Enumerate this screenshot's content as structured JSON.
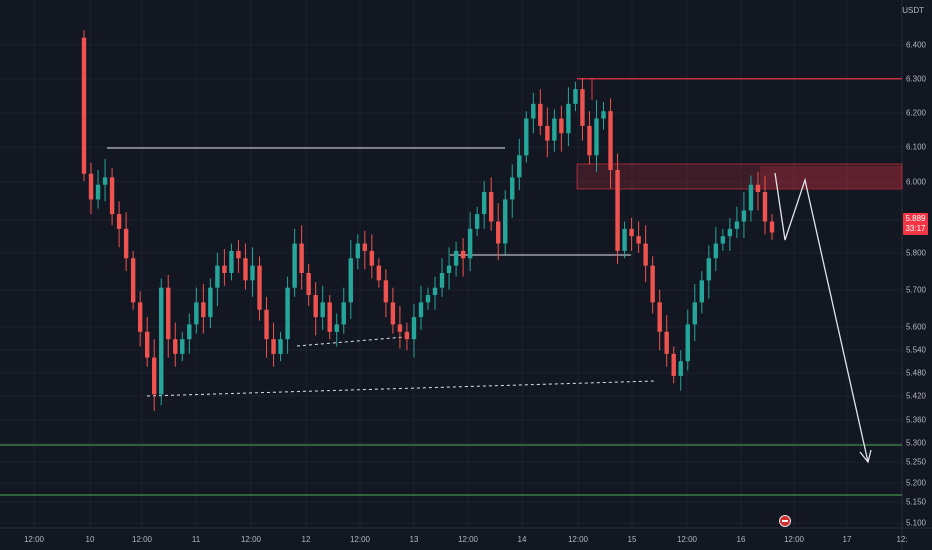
{
  "currency": "USDT",
  "last_price": {
    "price": "5.889",
    "countdown": "33:17"
  },
  "price_axis": [
    "6.400",
    "6.300",
    "6.200",
    "6.100",
    "6.000",
    "5.900",
    "5.800",
    "5.700",
    "5.600",
    "5.540",
    "5.480",
    "5.420",
    "5.360",
    "5.300",
    "5.250",
    "5.200",
    "5.150",
    "5.100"
  ],
  "time_axis": [
    "12:00",
    "10",
    "12:00",
    "11",
    "12:00",
    "12",
    "12:00",
    "13",
    "12:00",
    "14",
    "12:00",
    "15",
    "12:00",
    "16",
    "12:00",
    "17",
    "12:"
  ],
  "colors": {
    "up": "#26a69a",
    "down": "#ef5350",
    "background": "#131722",
    "zone": "#f23645",
    "support": "#4caf50"
  },
  "event_badge_icon": "calendar-event-icon",
  "chart_data": {
    "type": "candlestick",
    "ylim": [
      5.07,
      6.48
    ],
    "close_series": [
      6.05,
      5.98,
      6.02,
      6.04,
      5.94,
      5.9,
      5.82,
      5.7,
      5.62,
      5.55,
      5.45,
      5.74,
      5.6,
      5.56,
      5.6,
      5.64,
      5.7,
      5.66,
      5.74,
      5.8,
      5.78,
      5.84,
      5.82,
      5.76,
      5.8,
      5.68,
      5.6,
      5.56,
      5.6,
      5.74,
      5.86,
      5.78,
      5.72,
      5.66,
      5.7,
      5.62,
      5.64,
      5.7,
      5.82,
      5.86,
      5.84,
      5.8,
      5.76,
      5.7,
      5.64,
      5.62,
      5.6,
      5.66,
      5.7,
      5.72,
      5.74,
      5.78,
      5.8,
      5.84,
      5.82,
      5.9,
      5.94,
      6.0,
      5.92,
      5.86,
      5.98,
      6.04,
      6.1,
      6.2,
      6.24,
      6.18,
      6.14,
      6.2,
      6.16,
      6.24,
      6.28,
      6.18,
      6.1,
      6.2,
      6.22,
      6.06,
      5.84,
      5.9,
      5.88,
      5.86,
      5.8,
      5.7,
      5.62,
      5.56,
      5.5,
      5.54,
      5.64,
      5.7,
      5.76,
      5.82,
      5.86,
      5.88,
      5.9,
      5.92,
      5.95,
      6.02,
      6.0,
      5.92,
      5.89
    ],
    "annotations": [
      "resistance-zone-6.30",
      "supply-zone-6.00-6.05",
      "projected-path-down",
      "support-5.30",
      "support-5.18"
    ]
  }
}
